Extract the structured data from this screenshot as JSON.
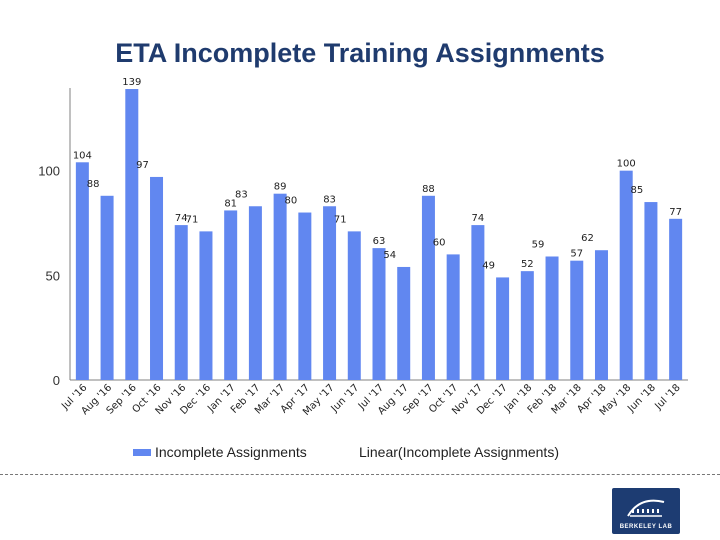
{
  "page": {
    "title": "ETA Incomplete Training Assignments"
  },
  "colors": {
    "bar": "#6187f0",
    "axis": "#808080",
    "title": "#1f3b6e",
    "logo_bg": "#1d3c72"
  },
  "chart_data": {
    "type": "bar",
    "title": "ETA Incomplete Training Assignments",
    "categories": [
      "Jul '16",
      "Aug '16",
      "Sep '16",
      "Oct '16",
      "Nov '16",
      "Dec '16",
      "Jan '17",
      "Feb '17",
      "Mar '17",
      "Apr '17",
      "May '17",
      "Jun '17",
      "Jul '17",
      "Aug '17",
      "Sep '17",
      "Oct '17",
      "Nov '17",
      "Dec '17",
      "Jan '18",
      "Feb '18",
      "Mar '18",
      "Apr '18",
      "May '18",
      "Jun '18",
      "Jul '18"
    ],
    "series": [
      {
        "name": "Incomplete Assignments",
        "values": [
          104,
          88,
          139,
          97,
          74,
          71,
          81,
          83,
          89,
          80,
          83,
          71,
          63,
          54,
          88,
          60,
          74,
          49,
          52,
          59,
          57,
          62,
          100,
          85,
          77
        ]
      }
    ],
    "yticks": [
      "0",
      "50",
      "100"
    ],
    "ylim": [
      0,
      150
    ],
    "grid": false,
    "legend": [
      "Incomplete Assignments",
      "Linear(Incomplete Assignments)"
    ],
    "legend_position": "bottom"
  },
  "logo": {
    "text": "BERKELEY LAB",
    "icon": "berkeley-lab-logo-icon"
  }
}
